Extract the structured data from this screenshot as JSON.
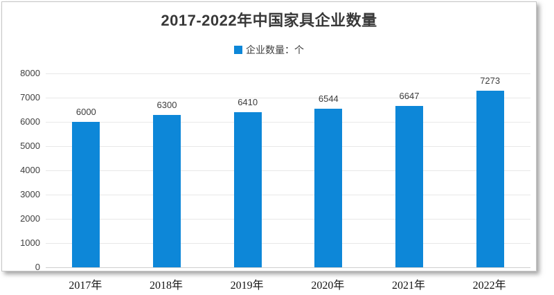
{
  "chart_data": {
    "type": "bar",
    "title": "2017-2022年中国家具企业数量",
    "legend": "企业数量：个",
    "legend_position": "top",
    "categories": [
      "2017年",
      "2018年",
      "2019年",
      "2020年",
      "2021年",
      "2022年"
    ],
    "values": [
      6000,
      6300,
      6410,
      6544,
      6647,
      7273
    ],
    "xlabel": "",
    "ylabel": "",
    "ylim": [
      0,
      8000
    ],
    "ytick_step": 1000,
    "yticks": [
      0,
      1000,
      2000,
      3000,
      4000,
      5000,
      6000,
      7000,
      8000
    ],
    "grid": true
  },
  "colors": {
    "bar": "#0d87d8",
    "gridline": "#e8e8e8",
    "axis_line": "#cfcfcf",
    "title_text": "#383838",
    "tick_text": "#3f3f3f",
    "card_border": "#c6c6c6"
  }
}
